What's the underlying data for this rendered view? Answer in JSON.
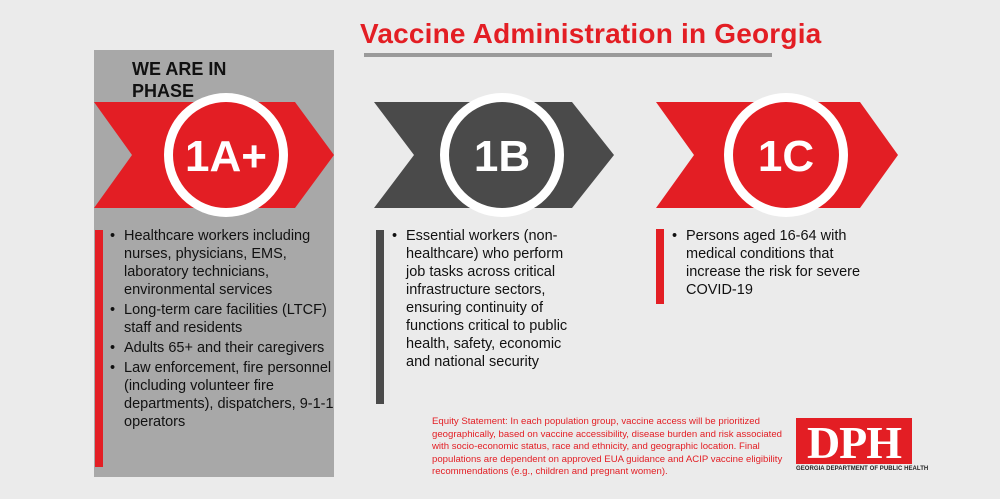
{
  "header": {
    "title": "Vaccine Administration in Georgia"
  },
  "current_phase": {
    "label": "WE ARE IN PHASE"
  },
  "phases": [
    {
      "label": "1A+",
      "color": "#e31e24",
      "items": [
        "Healthcare workers including nurses, physicians, EMS, laboratory technicians, environmental services",
        "Long-term care facilities (LTCF) staff and residents",
        "Adults 65+ and their caregivers",
        "Law enforcement, fire personnel (including volunteer fire departments), dispatchers, 9-1-1 operators"
      ]
    },
    {
      "label": "1B",
      "color": "#4a4a4a",
      "items": [
        "Essential workers (non-healthcare) who perform job tasks across critical infrastructure sectors, ensuring continuity of functions critical to public health, safety, economic and national security"
      ]
    },
    {
      "label": "1C",
      "color": "#e31e24",
      "items": [
        "Persons aged 16-64 with medical conditions that increase the risk for severe COVID-19"
      ]
    }
  ],
  "footer": {
    "equity_statement": "Equity Statement: In each population group, vaccine access will be prioritized geographically, based on vaccine accessibility, disease burden and risk associated with socio-economic status, race and ethnicity, and geographic location. Final populations are dependent on approved EUA guidance and ACIP vaccine eligibility recommendations (e.g., children and pregnant women).",
    "logo_text": "DPH",
    "logo_caption": "GEORGIA DEPARTMENT OF PUBLIC HEALTH"
  },
  "colors": {
    "accent": "#e31e24",
    "dark": "#4a4a4a",
    "panel": "#a8a8a8",
    "background": "#ebebeb"
  }
}
